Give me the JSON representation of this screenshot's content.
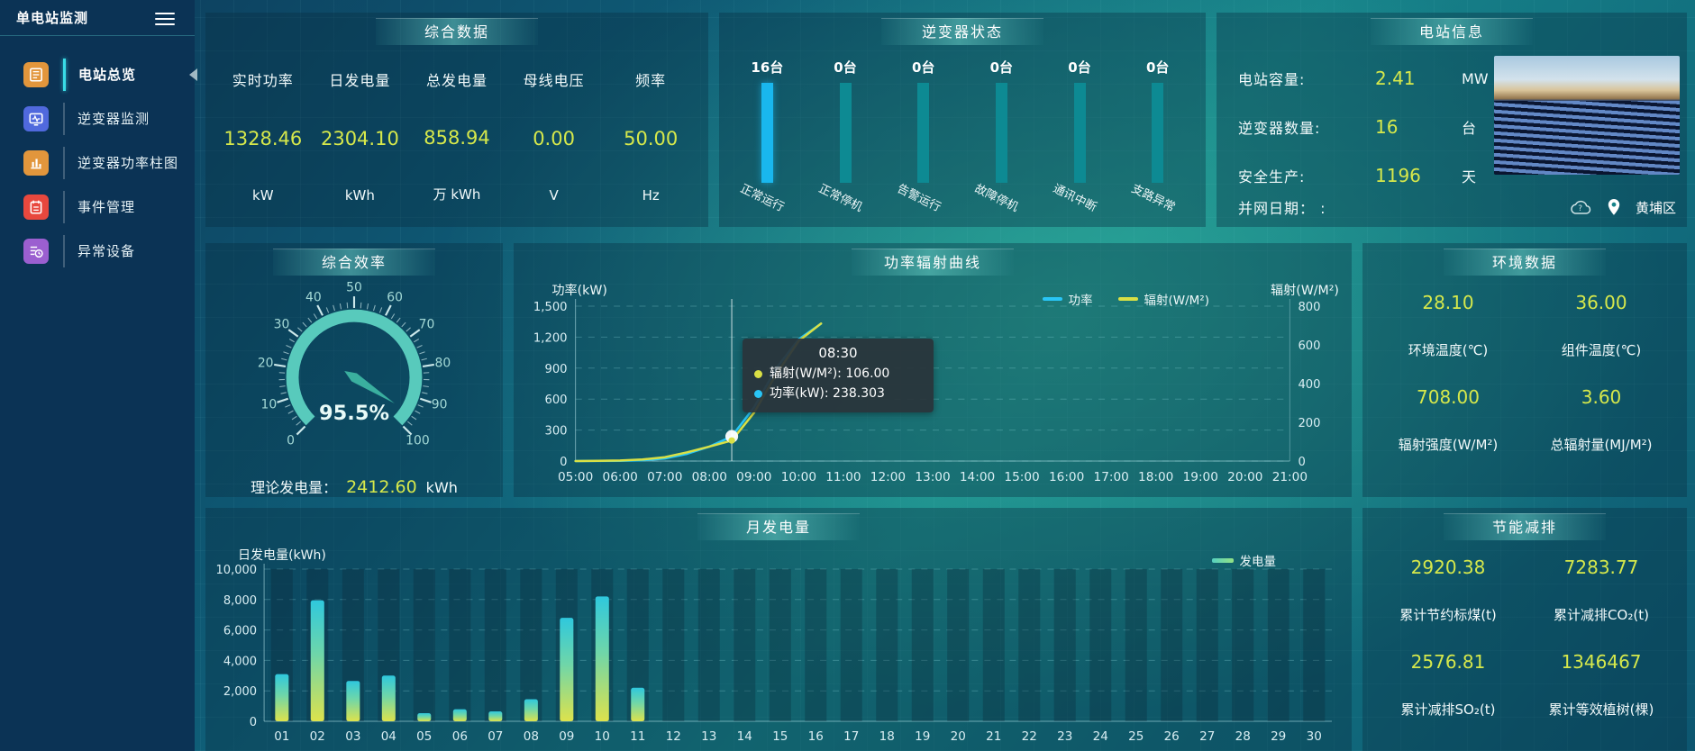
{
  "sidebar": {
    "title": "单电站监测",
    "items": [
      {
        "label": "电站总览",
        "icon": "overview",
        "icon_color": "#e2963c",
        "active": true
      },
      {
        "label": "逆变器监测",
        "icon": "monitor",
        "icon_color": "#5069dd"
      },
      {
        "label": "逆变器功率柱图",
        "icon": "barchart",
        "icon_color": "#e2963c"
      },
      {
        "label": "事件管理",
        "icon": "event",
        "icon_color": "#e8483e"
      },
      {
        "label": "异常设备",
        "icon": "abnormal",
        "icon_color": "#9b5fd0"
      }
    ]
  },
  "panels": {
    "summary": {
      "title": "综合数据",
      "metrics": [
        {
          "label": "实时功率",
          "value": "1328.46",
          "unit": "kW"
        },
        {
          "label": "日发电量",
          "value": "2304.10",
          "unit": "kWh"
        },
        {
          "label": "总发电量",
          "value": "858.94",
          "unit": "万 kWh"
        },
        {
          "label": "母线电压",
          "value": "0.00",
          "unit": "V"
        },
        {
          "label": "频率",
          "value": "50.00",
          "unit": "Hz"
        }
      ]
    },
    "inverter_status": {
      "title": "逆变器状态",
      "bars": [
        {
          "count": "16台",
          "label": "正常运行",
          "highlight": true
        },
        {
          "count": "0台",
          "label": "正常停机"
        },
        {
          "count": "0台",
          "label": "告警运行"
        },
        {
          "count": "0台",
          "label": "故障停机"
        },
        {
          "count": "0台",
          "label": "通讯中断"
        },
        {
          "count": "0台",
          "label": "支路异常"
        }
      ]
    },
    "station_info": {
      "title": "电站信息",
      "rows": [
        {
          "label": "电站容量:",
          "value": "2.41",
          "unit": "MW"
        },
        {
          "label": "逆变器数量:",
          "value": "16",
          "unit": "台"
        },
        {
          "label": "安全生产:",
          "value": "1196",
          "unit": "天"
        }
      ],
      "grid_date_label": "并网日期： :",
      "location": "黄埔区"
    },
    "efficiency": {
      "title": "综合效率",
      "theory_label": "理论发电量：",
      "theory_value": "2412.60",
      "theory_unit": "kWh"
    },
    "power_curve": {
      "title": "功率辐射曲线",
      "tooltip": {
        "time": "08:30",
        "rows": [
          {
            "color": "#d9e045",
            "text": "辐射(W/M²): 106.00"
          },
          {
            "color": "#29c5f6",
            "text": "功率(kW): 238.303"
          }
        ]
      }
    },
    "environment": {
      "title": "环境数据",
      "metrics": [
        {
          "value": "28.10",
          "label": "环境温度(℃)"
        },
        {
          "value": "36.00",
          "label": "组件温度(℃)"
        },
        {
          "value": "708.00",
          "label": "辐射强度(W/M²)"
        },
        {
          "value": "3.60",
          "label": "总辐射量(MJ/M²)"
        }
      ]
    },
    "saving": {
      "title": "节能减排",
      "metrics": [
        {
          "value": "2920.38",
          "label": "累计节约标煤(t)"
        },
        {
          "value": "7283.77",
          "label": "累计减排CO₂(t)"
        },
        {
          "value": "2576.81",
          "label": "累计减排SO₂(t)"
        },
        {
          "value": "1346467",
          "label": "累计等效植树(棵)"
        }
      ]
    }
  },
  "chart_data": {
    "power_radiation": {
      "type": "line",
      "title": "功率辐射曲线",
      "x": [
        "05:00",
        "05:30",
        "06:00",
        "06:30",
        "07:00",
        "07:30",
        "08:00",
        "08:30",
        "09:00",
        "09:30",
        "10:00",
        "10:30"
      ],
      "x_axis_labels": [
        "05:00",
        "06:00",
        "07:00",
        "08:00",
        "09:00",
        "10:00",
        "11:00",
        "12:00",
        "13:00",
        "14:00",
        "15:00",
        "16:00",
        "17:00",
        "18:00",
        "19:00",
        "20:00",
        "21:00"
      ],
      "series": [
        {
          "name": "功率",
          "color": "#29c5f6",
          "axis": "left",
          "values": [
            0,
            1,
            3,
            8,
            25,
            70,
            140,
            238.303,
            520,
            900,
            1180,
            1330
          ]
        },
        {
          "name": "辐射(W/M²)",
          "color": "#d9e045",
          "axis": "right",
          "values": [
            0,
            1,
            3,
            8,
            20,
            45,
            75,
            106,
            250,
            450,
            620,
            710
          ]
        }
      ],
      "y_left": {
        "label": "功率(kW)",
        "min": 0,
        "max": 1500,
        "tick_step": 300
      },
      "y_right": {
        "label": "辐射(W/M²)",
        "min": 0,
        "max": 800,
        "tick_step": 200
      },
      "legend": [
        {
          "label": "功率",
          "color": "#29c5f6"
        },
        {
          "label": "辐射(W/M²)",
          "color": "#d9e045"
        }
      ],
      "crosshair_x": "08:30",
      "highlight_point": {
        "x": "08:30",
        "power": 238.303,
        "radiation": 106.0
      }
    },
    "monthly_generation": {
      "type": "bar",
      "title": "月发电量",
      "ylabel": "日发电量(kWh)",
      "legend_label": "发电量",
      "categories": [
        "01",
        "02",
        "03",
        "04",
        "05",
        "06",
        "07",
        "08",
        "09",
        "10",
        "11",
        "12",
        "13",
        "14",
        "15",
        "16",
        "17",
        "18",
        "19",
        "20",
        "21",
        "22",
        "23",
        "24",
        "25",
        "26",
        "27",
        "28",
        "29",
        "30"
      ],
      "values": [
        3100,
        7950,
        2650,
        3000,
        530,
        790,
        650,
        1450,
        6800,
        8200,
        2200,
        0,
        0,
        0,
        0,
        0,
        0,
        0,
        0,
        0,
        0,
        0,
        0,
        0,
        0,
        0,
        0,
        0,
        0,
        0
      ],
      "ylim": [
        0,
        10000
      ],
      "tick_step": 2000
    },
    "efficiency_gauge": {
      "type": "gauge",
      "min": 0,
      "max": 100,
      "value": 95.5,
      "label": "95.5%",
      "major_tick": 10,
      "color": "#58cabc"
    }
  }
}
